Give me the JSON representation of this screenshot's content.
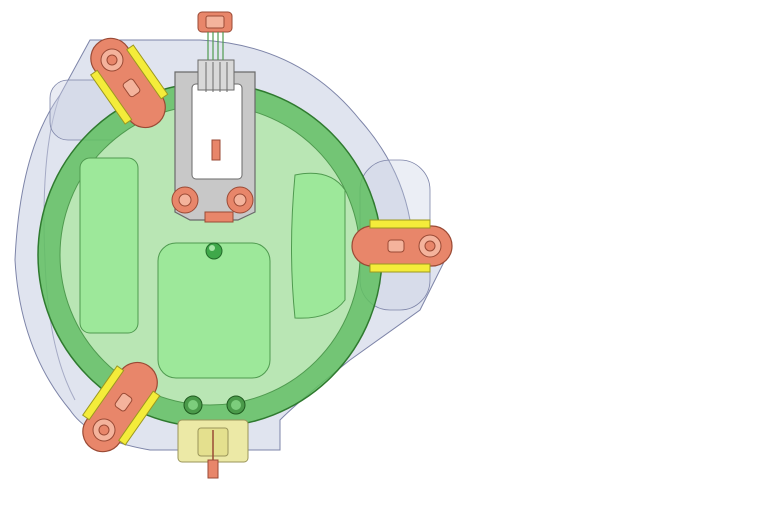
{
  "drawing": {
    "kind": "cad-assembly-top-view",
    "parts": {
      "housing": {
        "role": "outer translucent housing",
        "fill": "#c7cde2",
        "stroke": "#7d84a8"
      },
      "base_disc": {
        "role": "green circular base",
        "fill": "#5fbf5f",
        "stroke": "#2f7a2f"
      },
      "inner_panel": {
        "role": "light green inner panel",
        "fill": "#b9e6b4"
      },
      "pads": {
        "role": "raised green pads",
        "fill": "#9de89a",
        "stroke": "#4f9a4f"
      },
      "clamps": {
        "role": "copper clamp levers",
        "count": 3,
        "fill": "#e8866a",
        "stroke": "#9a4a35"
      },
      "clamp_inserts": {
        "role": "yellow clamp inserts",
        "fill": "#f4ec3a",
        "stroke": "#9c9820"
      },
      "connector_frame": {
        "role": "grey connector frame",
        "fill": "#c8c8c8",
        "stroke": "#6a6a6a"
      },
      "bottom_connector": {
        "role": "yellow bottom connector",
        "fill": "#ece9a6",
        "stroke": "#9a955a"
      },
      "center_knob": {
        "role": "green knob",
        "fill": "#3fa84a"
      }
    }
  }
}
